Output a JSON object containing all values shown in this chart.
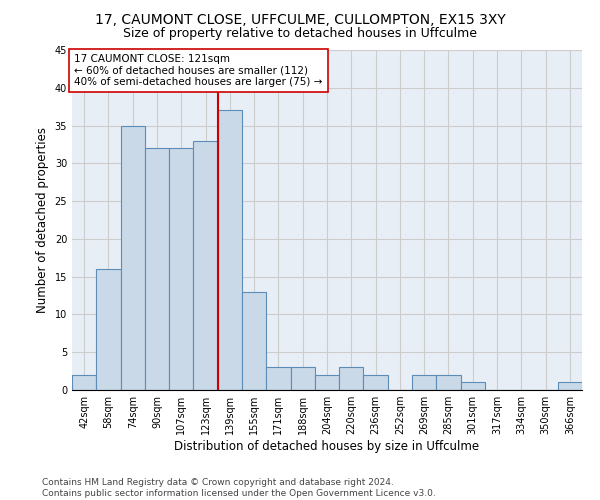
{
  "title1": "17, CAUMONT CLOSE, UFFCULME, CULLOMPTON, EX15 3XY",
  "title2": "Size of property relative to detached houses in Uffculme",
  "xlabel": "Distribution of detached houses by size in Uffculme",
  "ylabel": "Number of detached properties",
  "bin_labels": [
    "42sqm",
    "58sqm",
    "74sqm",
    "90sqm",
    "107sqm",
    "123sqm",
    "139sqm",
    "155sqm",
    "171sqm",
    "188sqm",
    "204sqm",
    "220sqm",
    "236sqm",
    "252sqm",
    "269sqm",
    "285sqm",
    "301sqm",
    "317sqm",
    "334sqm",
    "350sqm",
    "366sqm"
  ],
  "bar_values": [
    2,
    16,
    35,
    32,
    32,
    33,
    37,
    13,
    3,
    3,
    2,
    3,
    2,
    0,
    2,
    2,
    1,
    0,
    0,
    0,
    1
  ],
  "bar_color": "#c9d9e8",
  "bar_edge_color": "#5b8db8",
  "bar_edge_width": 0.8,
  "vline_x": 5.5,
  "vline_color": "#cc0000",
  "annotation_text": "17 CAUMONT CLOSE: 121sqm\n← 60% of detached houses are smaller (112)\n40% of semi-detached houses are larger (75) →",
  "annotation_box_color": "white",
  "annotation_box_edge_color": "#cc0000",
  "annotation_fontsize": 7.5,
  "ylim": [
    0,
    45
  ],
  "yticks": [
    0,
    5,
    10,
    15,
    20,
    25,
    30,
    35,
    40,
    45
  ],
  "grid_color": "#cccccc",
  "background_color": "#e8eef5",
  "footer_text": "Contains HM Land Registry data © Crown copyright and database right 2024.\nContains public sector information licensed under the Open Government Licence v3.0.",
  "title1_fontsize": 10,
  "title2_fontsize": 9,
  "xlabel_fontsize": 8.5,
  "ylabel_fontsize": 8.5,
  "footer_fontsize": 6.5,
  "tick_fontsize": 7
}
